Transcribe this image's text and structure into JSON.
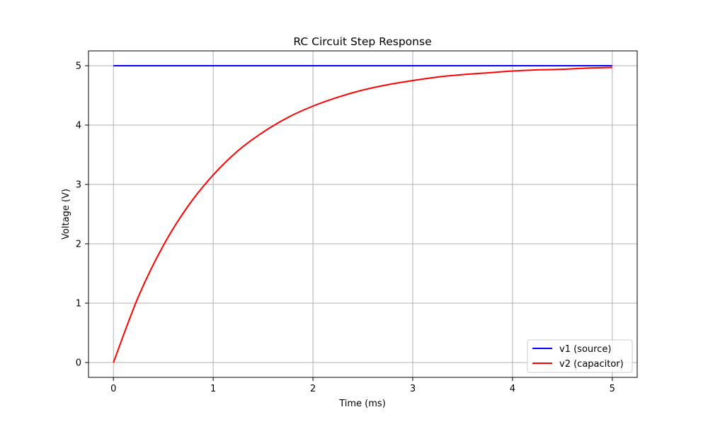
{
  "chart_data": {
    "type": "line",
    "title": "RC Circuit Step Response",
    "xlabel": "Time (ms)",
    "ylabel": "Voltage (V)",
    "xlim": [
      -0.25,
      5.25
    ],
    "ylim": [
      -0.25,
      5.25
    ],
    "xticks": [
      0,
      1,
      2,
      3,
      4,
      5
    ],
    "yticks": [
      0,
      1,
      2,
      3,
      4,
      5
    ],
    "grid": true,
    "legend_position": "bottom-right",
    "series": [
      {
        "name": "v1 (source)",
        "color": "#0000ff",
        "x": [
          0,
          5
        ],
        "y": [
          5,
          5
        ]
      },
      {
        "name": "v2 (capacitor)",
        "color": "#ff0000",
        "x": [
          0,
          0.25,
          0.5,
          0.75,
          1,
          1.25,
          1.5,
          1.75,
          2,
          2.25,
          2.5,
          2.75,
          3,
          3.25,
          3.5,
          3.75,
          4,
          4.25,
          4.5,
          4.75,
          5
        ],
        "y": [
          0,
          1.11,
          1.97,
          2.64,
          3.16,
          3.57,
          3.88,
          4.13,
          4.32,
          4.47,
          4.59,
          4.68,
          4.75,
          4.81,
          4.85,
          4.88,
          4.91,
          4.93,
          4.94,
          4.96,
          4.97
        ]
      }
    ]
  }
}
